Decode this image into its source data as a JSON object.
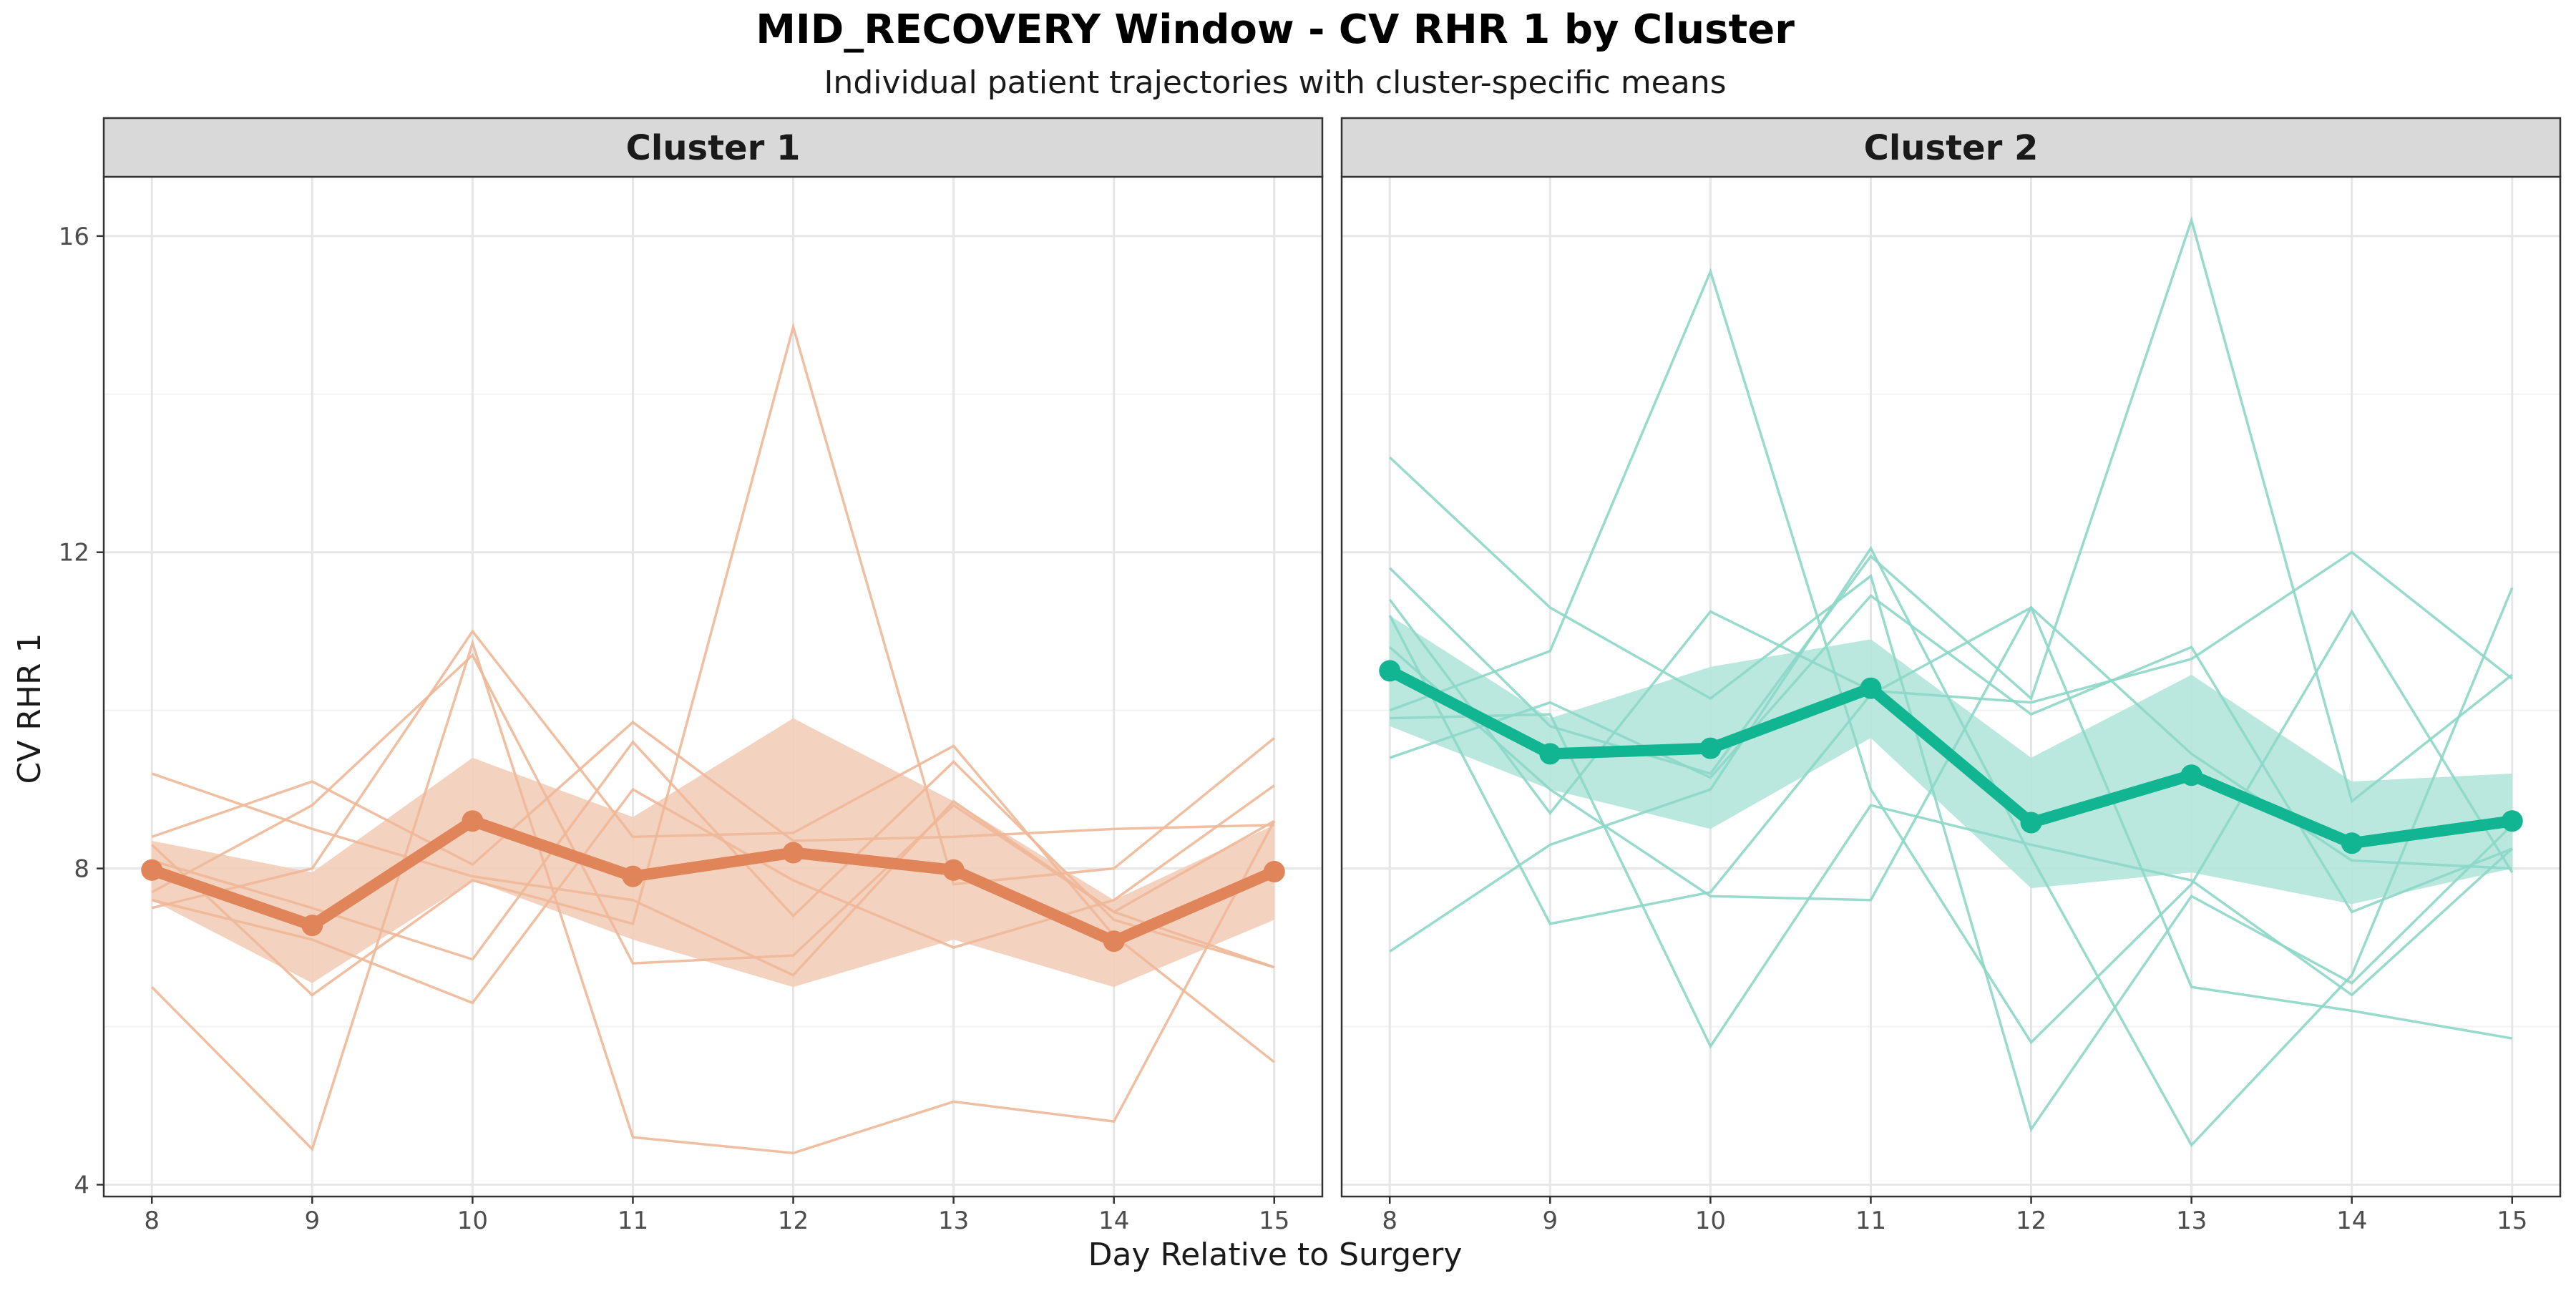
{
  "figure": {
    "title": "MID_RECOVERY Window - CV RHR 1 by Cluster",
    "subtitle": "Individual patient trajectories with cluster-specific means"
  },
  "chart_data": {
    "type": "line",
    "title": "MID_RECOVERY Window - CV RHR 1 by Cluster",
    "subtitle": "Individual patient trajectories with cluster-specific means",
    "xlabel": "Day Relative to Surgery",
    "ylabel": "CV RHR 1",
    "x": [
      8,
      9,
      10,
      11,
      12,
      13,
      14,
      15
    ],
    "xlim": [
      7.7,
      15.3
    ],
    "ylim": [
      3.85,
      16.75
    ],
    "yticks": [
      4,
      8,
      12,
      16
    ],
    "grid": true,
    "legend": "none",
    "facets": [
      {
        "name": "Cluster 1",
        "color": "#E0855A",
        "band_color": "#F3CDB9",
        "patient_color": "#EEB898",
        "mean": [
          7.98,
          7.28,
          8.6,
          7.9,
          8.2,
          7.98,
          7.08,
          7.96
        ],
        "band_upper": [
          8.35,
          7.95,
          9.4,
          8.65,
          9.9,
          8.85,
          7.6,
          8.55
        ],
        "band_lower": [
          7.6,
          6.55,
          7.85,
          7.1,
          6.5,
          7.1,
          6.5,
          7.35
        ],
        "patients": [
          [
            9.2,
            8.5,
            7.9,
            7.6,
            6.65,
            8.85,
            7.45,
            6.75
          ],
          [
            8.4,
            9.1,
            8.05,
            9.85,
            8.35,
            8.4,
            8.5,
            8.55
          ],
          [
            6.5,
            4.45,
            10.85,
            4.6,
            4.4,
            5.05,
            4.8,
            8.6
          ],
          [
            7.5,
            8.0,
            11.0,
            8.4,
            8.45,
            9.55,
            7.15,
            5.55
          ],
          [
            8.3,
            6.4,
            7.85,
            7.3,
            14.85,
            7.8,
            8.0,
            9.65
          ],
          [
            7.7,
            8.8,
            10.7,
            6.8,
            6.9,
            8.8,
            7.45,
            8.6
          ],
          [
            8.1,
            7.5,
            6.85,
            9.6,
            7.4,
            9.35,
            7.35,
            6.75
          ],
          [
            7.6,
            7.1,
            6.3,
            9.0,
            7.85,
            7.0,
            7.6,
            9.05
          ]
        ]
      },
      {
        "name": "Cluster 2",
        "color": "#12B592",
        "band_color": "#B2E5DA",
        "patient_color": "#8DD7C7",
        "mean": [
          10.5,
          9.45,
          9.52,
          10.28,
          8.58,
          9.18,
          8.32,
          8.6
        ],
        "band_upper": [
          11.2,
          9.9,
          10.55,
          10.9,
          9.4,
          10.45,
          9.1,
          9.2
        ],
        "band_lower": [
          9.8,
          9.0,
          8.5,
          9.65,
          7.75,
          7.95,
          7.55,
          8.0
        ],
        "patients": [
          [
            13.2,
            11.3,
            10.15,
            11.7,
            4.7,
            7.65,
            6.55,
            8.55
          ],
          [
            11.8,
            9.8,
            9.2,
            11.95,
            10.15,
            16.2,
            8.85,
            10.45
          ],
          [
            11.4,
            8.7,
            11.25,
            10.25,
            10.1,
            10.65,
            12.0,
            10.4
          ],
          [
            10.0,
            10.75,
            15.55,
            9.0,
            5.8,
            7.8,
            11.25,
            7.95
          ],
          [
            9.4,
            10.1,
            9.15,
            11.45,
            9.95,
            10.8,
            7.45,
            8.25
          ],
          [
            6.95,
            8.3,
            9.0,
            12.05,
            8.15,
            4.5,
            6.65,
            11.55
          ],
          [
            11.2,
            7.3,
            7.7,
            10.2,
            11.3,
            6.5,
            6.2,
            5.85
          ],
          [
            9.9,
            9.95,
            5.75,
            8.8,
            8.3,
            7.85,
            6.4,
            8.25
          ],
          [
            10.8,
            9.0,
            7.65,
            7.6,
            11.3,
            9.45,
            8.1,
            8.0
          ]
        ]
      }
    ]
  }
}
